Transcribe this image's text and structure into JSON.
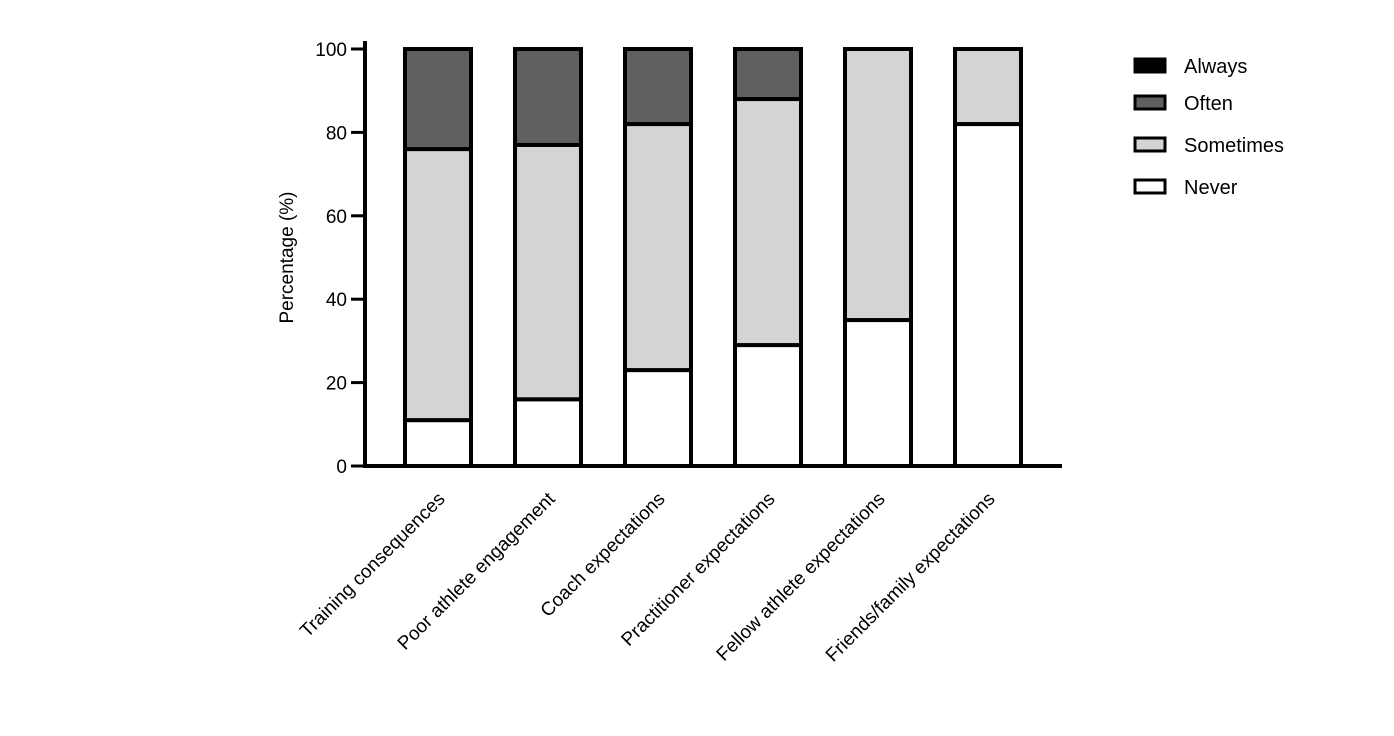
{
  "chart_data": {
    "type": "bar",
    "stacked": true,
    "title": "",
    "xlabel": "",
    "ylabel": "Percentage (%)",
    "ylim": [
      0,
      100
    ],
    "yticks": [
      "0",
      "20",
      "40",
      "60",
      "80",
      "100"
    ],
    "grid": false,
    "legend_position": "top-right",
    "categories": [
      "Training consequences",
      "Poor athlete engagement",
      "Coach expectations",
      "Practitioner expectations",
      "Fellow athlete expectations",
      "Friends/family expectations"
    ],
    "series": [
      {
        "name": "Never",
        "color": "#ffffff",
        "values": [
          11,
          16,
          23,
          29,
          35,
          82
        ]
      },
      {
        "name": "Sometimes",
        "color": "#d4d4d4",
        "values": [
          65,
          61,
          59,
          59,
          65,
          18
        ]
      },
      {
        "name": "Often",
        "color": "#606060",
        "values": [
          24,
          23,
          18,
          12,
          0,
          0
        ]
      },
      {
        "name": "Always",
        "color": "#000000",
        "values": [
          0,
          0,
          0,
          0,
          0,
          0
        ]
      }
    ],
    "legend_order": [
      "Always",
      "Often",
      "Sometimes",
      "Never"
    ]
  }
}
